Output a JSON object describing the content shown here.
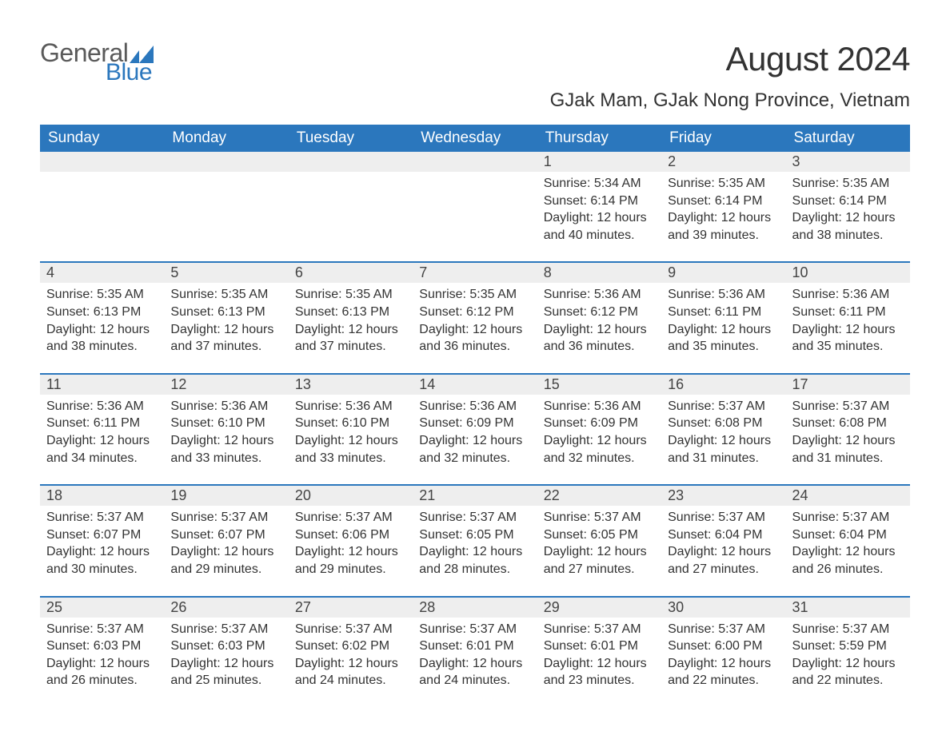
{
  "logo": {
    "general": "General",
    "blue": "Blue"
  },
  "title": "August 2024",
  "location": "GJak Mam, GJak Nong Province, Vietnam",
  "colors": {
    "brand_blue": "#2b77bd",
    "header_row_bg": "#eeeeee",
    "text": "#333333",
    "logo_gray": "#5a5a5a"
  },
  "typography": {
    "title_fontsize": 42,
    "location_fontsize": 24,
    "weekday_fontsize": 19,
    "daynum_fontsize": 18,
    "body_fontsize": 16,
    "font_family": "Arial"
  },
  "weekdays": [
    "Sunday",
    "Monday",
    "Tuesday",
    "Wednesday",
    "Thursday",
    "Friday",
    "Saturday"
  ],
  "weeks": [
    [
      null,
      null,
      null,
      null,
      {
        "day": "1",
        "sunrise": "Sunrise: 5:34 AM",
        "sunset": "Sunset: 6:14 PM",
        "daylight": "Daylight: 12 hours and 40 minutes."
      },
      {
        "day": "2",
        "sunrise": "Sunrise: 5:35 AM",
        "sunset": "Sunset: 6:14 PM",
        "daylight": "Daylight: 12 hours and 39 minutes."
      },
      {
        "day": "3",
        "sunrise": "Sunrise: 5:35 AM",
        "sunset": "Sunset: 6:14 PM",
        "daylight": "Daylight: 12 hours and 38 minutes."
      }
    ],
    [
      {
        "day": "4",
        "sunrise": "Sunrise: 5:35 AM",
        "sunset": "Sunset: 6:13 PM",
        "daylight": "Daylight: 12 hours and 38 minutes."
      },
      {
        "day": "5",
        "sunrise": "Sunrise: 5:35 AM",
        "sunset": "Sunset: 6:13 PM",
        "daylight": "Daylight: 12 hours and 37 minutes."
      },
      {
        "day": "6",
        "sunrise": "Sunrise: 5:35 AM",
        "sunset": "Sunset: 6:13 PM",
        "daylight": "Daylight: 12 hours and 37 minutes."
      },
      {
        "day": "7",
        "sunrise": "Sunrise: 5:35 AM",
        "sunset": "Sunset: 6:12 PM",
        "daylight": "Daylight: 12 hours and 36 minutes."
      },
      {
        "day": "8",
        "sunrise": "Sunrise: 5:36 AM",
        "sunset": "Sunset: 6:12 PM",
        "daylight": "Daylight: 12 hours and 36 minutes."
      },
      {
        "day": "9",
        "sunrise": "Sunrise: 5:36 AM",
        "sunset": "Sunset: 6:11 PM",
        "daylight": "Daylight: 12 hours and 35 minutes."
      },
      {
        "day": "10",
        "sunrise": "Sunrise: 5:36 AM",
        "sunset": "Sunset: 6:11 PM",
        "daylight": "Daylight: 12 hours and 35 minutes."
      }
    ],
    [
      {
        "day": "11",
        "sunrise": "Sunrise: 5:36 AM",
        "sunset": "Sunset: 6:11 PM",
        "daylight": "Daylight: 12 hours and 34 minutes."
      },
      {
        "day": "12",
        "sunrise": "Sunrise: 5:36 AM",
        "sunset": "Sunset: 6:10 PM",
        "daylight": "Daylight: 12 hours and 33 minutes."
      },
      {
        "day": "13",
        "sunrise": "Sunrise: 5:36 AM",
        "sunset": "Sunset: 6:10 PM",
        "daylight": "Daylight: 12 hours and 33 minutes."
      },
      {
        "day": "14",
        "sunrise": "Sunrise: 5:36 AM",
        "sunset": "Sunset: 6:09 PM",
        "daylight": "Daylight: 12 hours and 32 minutes."
      },
      {
        "day": "15",
        "sunrise": "Sunrise: 5:36 AM",
        "sunset": "Sunset: 6:09 PM",
        "daylight": "Daylight: 12 hours and 32 minutes."
      },
      {
        "day": "16",
        "sunrise": "Sunrise: 5:37 AM",
        "sunset": "Sunset: 6:08 PM",
        "daylight": "Daylight: 12 hours and 31 minutes."
      },
      {
        "day": "17",
        "sunrise": "Sunrise: 5:37 AM",
        "sunset": "Sunset: 6:08 PM",
        "daylight": "Daylight: 12 hours and 31 minutes."
      }
    ],
    [
      {
        "day": "18",
        "sunrise": "Sunrise: 5:37 AM",
        "sunset": "Sunset: 6:07 PM",
        "daylight": "Daylight: 12 hours and 30 minutes."
      },
      {
        "day": "19",
        "sunrise": "Sunrise: 5:37 AM",
        "sunset": "Sunset: 6:07 PM",
        "daylight": "Daylight: 12 hours and 29 minutes."
      },
      {
        "day": "20",
        "sunrise": "Sunrise: 5:37 AM",
        "sunset": "Sunset: 6:06 PM",
        "daylight": "Daylight: 12 hours and 29 minutes."
      },
      {
        "day": "21",
        "sunrise": "Sunrise: 5:37 AM",
        "sunset": "Sunset: 6:05 PM",
        "daylight": "Daylight: 12 hours and 28 minutes."
      },
      {
        "day": "22",
        "sunrise": "Sunrise: 5:37 AM",
        "sunset": "Sunset: 6:05 PM",
        "daylight": "Daylight: 12 hours and 27 minutes."
      },
      {
        "day": "23",
        "sunrise": "Sunrise: 5:37 AM",
        "sunset": "Sunset: 6:04 PM",
        "daylight": "Daylight: 12 hours and 27 minutes."
      },
      {
        "day": "24",
        "sunrise": "Sunrise: 5:37 AM",
        "sunset": "Sunset: 6:04 PM",
        "daylight": "Daylight: 12 hours and 26 minutes."
      }
    ],
    [
      {
        "day": "25",
        "sunrise": "Sunrise: 5:37 AM",
        "sunset": "Sunset: 6:03 PM",
        "daylight": "Daylight: 12 hours and 26 minutes."
      },
      {
        "day": "26",
        "sunrise": "Sunrise: 5:37 AM",
        "sunset": "Sunset: 6:03 PM",
        "daylight": "Daylight: 12 hours and 25 minutes."
      },
      {
        "day": "27",
        "sunrise": "Sunrise: 5:37 AM",
        "sunset": "Sunset: 6:02 PM",
        "daylight": "Daylight: 12 hours and 24 minutes."
      },
      {
        "day": "28",
        "sunrise": "Sunrise: 5:37 AM",
        "sunset": "Sunset: 6:01 PM",
        "daylight": "Daylight: 12 hours and 24 minutes."
      },
      {
        "day": "29",
        "sunrise": "Sunrise: 5:37 AM",
        "sunset": "Sunset: 6:01 PM",
        "daylight": "Daylight: 12 hours and 23 minutes."
      },
      {
        "day": "30",
        "sunrise": "Sunrise: 5:37 AM",
        "sunset": "Sunset: 6:00 PM",
        "daylight": "Daylight: 12 hours and 22 minutes."
      },
      {
        "day": "31",
        "sunrise": "Sunrise: 5:37 AM",
        "sunset": "Sunset: 5:59 PM",
        "daylight": "Daylight: 12 hours and 22 minutes."
      }
    ]
  ]
}
